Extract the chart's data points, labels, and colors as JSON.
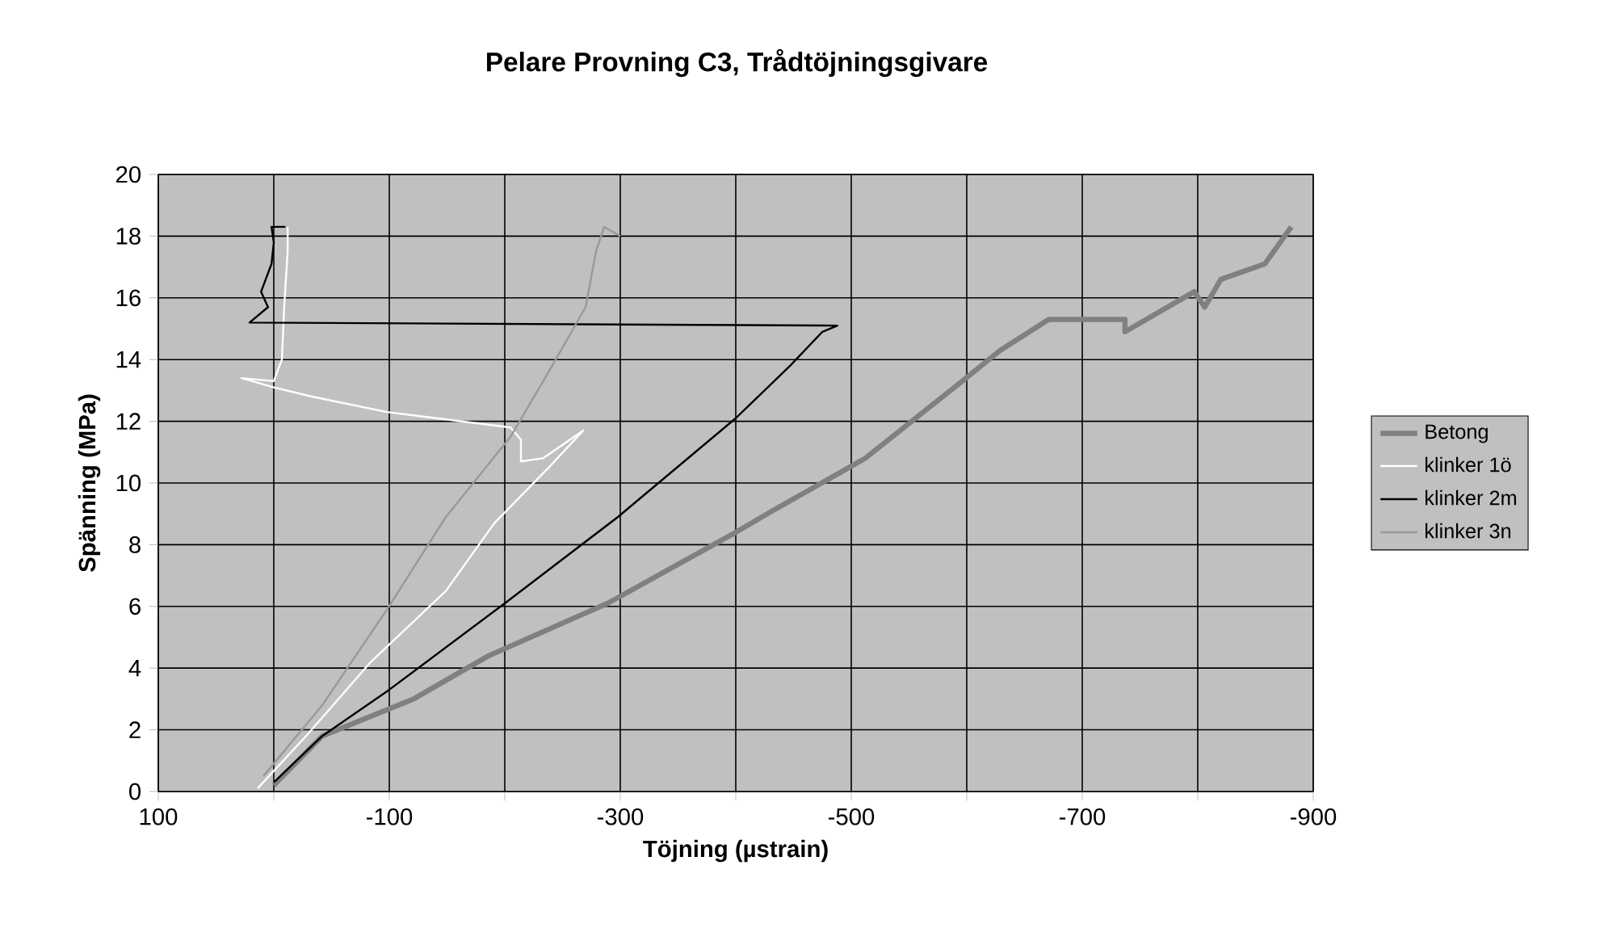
{
  "chart_data": {
    "type": "line",
    "title": "Pelare Provning C3, Trådtöjningsgivare",
    "xlabel": "Töjning (µstrain)",
    "ylabel": "Spänning (MPa)",
    "xlim": [
      100,
      -900
    ],
    "ylim": [
      0,
      20
    ],
    "xticks": [
      100,
      {
        "value": 0,
        "label": null
      },
      -100,
      {
        "value": -200,
        "label": null
      },
      -300,
      {
        "value": -400,
        "label": null
      },
      -500,
      {
        "value": -600,
        "label": null
      },
      -700,
      {
        "value": -800,
        "label": null
      },
      -900
    ],
    "yticks": [
      0,
      2,
      4,
      6,
      8,
      10,
      12,
      14,
      16,
      18,
      20
    ],
    "grid": true,
    "legend": "right",
    "marker": "none",
    "series": [
      {
        "name": "Betong",
        "color": "#808080",
        "x": [
          0,
          -42,
          -121,
          -186,
          -289,
          -400,
          -432,
          -512,
          -596,
          -629,
          -671,
          -737,
          -737,
          -797,
          -806,
          -820,
          -858,
          -881
        ],
        "values": [
          0.2,
          1.8,
          3.0,
          4.4,
          6.1,
          8.4,
          9.1,
          10.8,
          13.3,
          14.3,
          15.3,
          15.3,
          14.9,
          16.2,
          15.7,
          16.6,
          17.1,
          18.3
        ]
      },
      {
        "name": "klinker 1ö",
        "color": "#ffffff",
        "x": [
          14,
          -28,
          -84,
          -149,
          -191,
          -238,
          -268,
          -233,
          -214,
          -214,
          -205,
          -98,
          -33,
          0,
          28,
          0,
          -7,
          -9,
          -12,
          -12
        ],
        "values": [
          0.1,
          1.8,
          4.2,
          6.5,
          8.7,
          10.5,
          11.7,
          10.8,
          10.7,
          11.4,
          11.8,
          12.3,
          12.8,
          13.1,
          13.4,
          13.3,
          14.0,
          15.7,
          17.5,
          18.3
        ]
      },
      {
        "name": "klinker 2m",
        "color": "#000000",
        "x": [
          0,
          -42,
          -100,
          -200,
          -298,
          -400,
          -447,
          -475,
          -488,
          21,
          5,
          11,
          2,
          0,
          2,
          -10
        ],
        "values": [
          0.3,
          1.8,
          3.3,
          6.1,
          8.9,
          12.1,
          13.8,
          14.9,
          15.1,
          15.2,
          15.7,
          16.2,
          17.1,
          17.8,
          18.3,
          18.3
        ]
      },
      {
        "name": "klinker 3n",
        "color": "#999999",
        "x": [
          9,
          -42,
          -98,
          -149,
          -205,
          -238,
          -270,
          -279,
          -286,
          -300
        ],
        "values": [
          0.5,
          2.8,
          5.9,
          8.9,
          11.5,
          13.6,
          15.7,
          17.5,
          18.3,
          18.0
        ]
      }
    ]
  }
}
